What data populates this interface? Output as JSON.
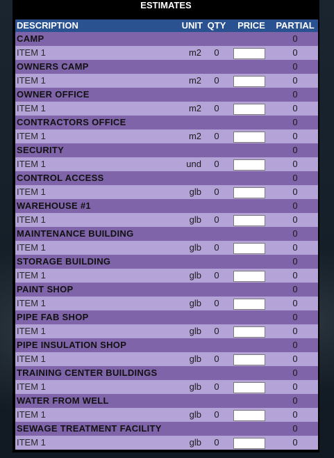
{
  "title": "ESTIMATES",
  "headers": {
    "description": "DESCRIPTION",
    "unit": "UNIT",
    "qty": "QTY",
    "price": "PRICE",
    "partial": "PARTIAL"
  },
  "sections": [
    {
      "name": "CAMP",
      "partial": "0",
      "items": [
        {
          "description": "ITEM 1",
          "unit": "m2",
          "qty": "0",
          "price": "",
          "partial": "0"
        }
      ]
    },
    {
      "name": "OWNERS CAMP",
      "partial": "0",
      "items": [
        {
          "description": "ITEM 1",
          "unit": "m2",
          "qty": "0",
          "price": "",
          "partial": "0"
        }
      ]
    },
    {
      "name": "OWNER OFFICE",
      "partial": "0",
      "items": [
        {
          "description": "ITEM 1",
          "unit": "m2",
          "qty": "0",
          "price": "",
          "partial": "0"
        }
      ]
    },
    {
      "name": "CONTRACTORS OFFICE",
      "partial": "0",
      "items": [
        {
          "description": "ITEM 1",
          "unit": "m2",
          "qty": "0",
          "price": "",
          "partial": "0"
        }
      ]
    },
    {
      "name": "SECURITY",
      "partial": "0",
      "items": [
        {
          "description": "ITEM 1",
          "unit": "und",
          "qty": "0",
          "price": "",
          "partial": "0"
        }
      ]
    },
    {
      "name": "CONTROL ACCESS",
      "partial": "0",
      "items": [
        {
          "description": "ITEM 1",
          "unit": "glb",
          "qty": "0",
          "price": "",
          "partial": "0"
        }
      ]
    },
    {
      "name": "WAREHOUSE #1",
      "partial": "0",
      "items": [
        {
          "description": "ITEM 1",
          "unit": "glb",
          "qty": "0",
          "price": "",
          "partial": "0"
        }
      ]
    },
    {
      "name": "MAINTENANCE BUILDING",
      "partial": "0",
      "items": [
        {
          "description": "ITEM 1",
          "unit": "glb",
          "qty": "0",
          "price": "",
          "partial": "0"
        }
      ]
    },
    {
      "name": "STORAGE BUILDING",
      "partial": "0",
      "items": [
        {
          "description": "ITEM 1",
          "unit": "glb",
          "qty": "0",
          "price": "",
          "partial": "0"
        }
      ]
    },
    {
      "name": "PAINT SHOP",
      "partial": "0",
      "items": [
        {
          "description": "ITEM 1",
          "unit": "glb",
          "qty": "0",
          "price": "",
          "partial": "0"
        }
      ]
    },
    {
      "name": "PIPE FAB SHOP",
      "partial": "0",
      "items": [
        {
          "description": "ITEM 1",
          "unit": "glb",
          "qty": "0",
          "price": "",
          "partial": "0"
        }
      ]
    },
    {
      "name": "PIPE INSULATION SHOP",
      "partial": "0",
      "items": [
        {
          "description": "ITEM 1",
          "unit": "glb",
          "qty": "0",
          "price": "",
          "partial": "0"
        }
      ]
    },
    {
      "name": "TRAINING CENTER BUILDINGS",
      "partial": "0",
      "items": [
        {
          "description": "ITEM 1",
          "unit": "glb",
          "qty": "0",
          "price": "",
          "partial": "0"
        }
      ]
    },
    {
      "name": "WATER FROM WELL",
      "partial": "0",
      "items": [
        {
          "description": "ITEM 1",
          "unit": "glb",
          "qty": "0",
          "price": "",
          "partial": "0"
        }
      ]
    },
    {
      "name": "SEWAGE TREATMENT FACILITY",
      "partial": "0",
      "items": [
        {
          "description": "ITEM 1",
          "unit": "glb",
          "qty": "0",
          "price": "",
          "partial": "0"
        }
      ]
    }
  ]
}
